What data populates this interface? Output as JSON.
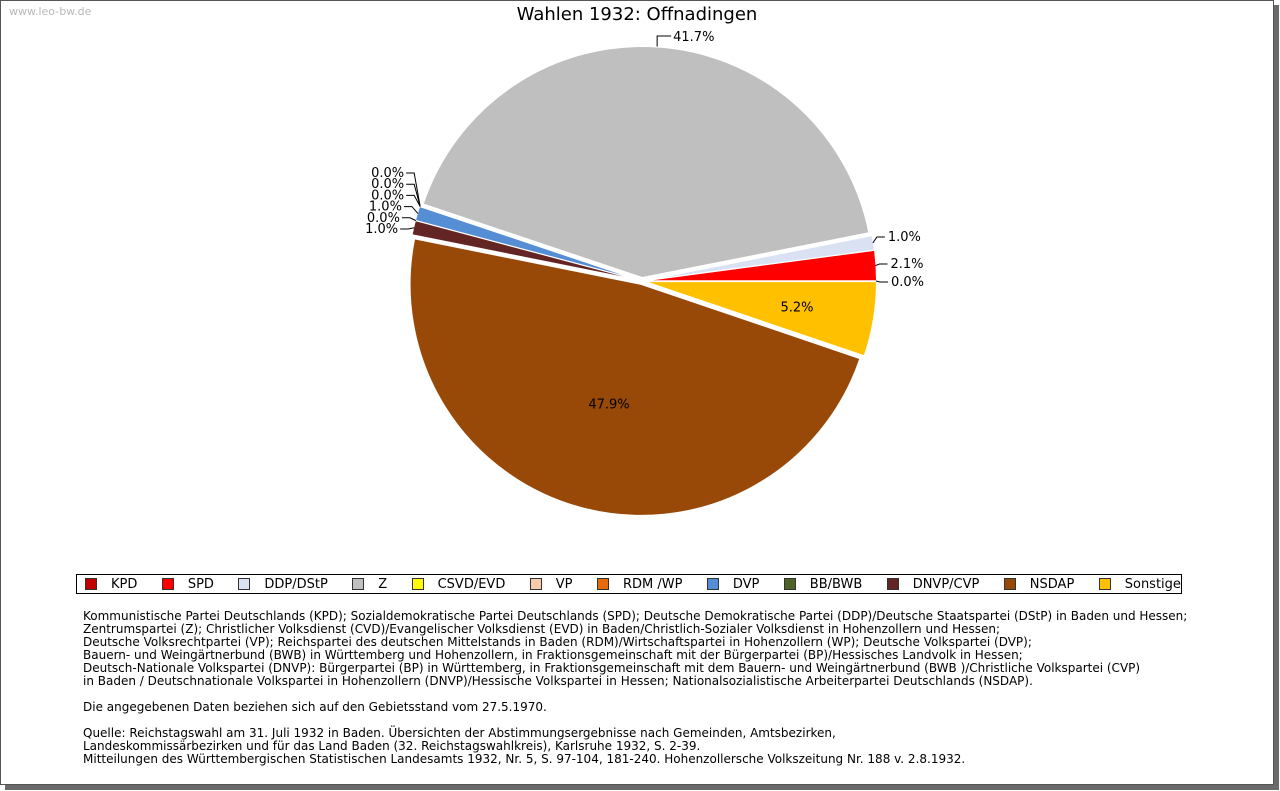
{
  "watermark": "www.leo-bw.de",
  "chart_data": {
    "type": "pie",
    "title": "Wahlen 1932: Offnadingen",
    "slices": [
      {
        "name": "KPD",
        "value": 0.0,
        "label": "0.0%",
        "color": "#c00000"
      },
      {
        "name": "SPD",
        "value": 2.1,
        "label": "2.1%",
        "color": "#ff0000"
      },
      {
        "name": "DDP/DStP",
        "value": 1.0,
        "label": "1.0%",
        "color": "#d9e1f2"
      },
      {
        "name": "Z",
        "value": 41.7,
        "label": "41.7%",
        "color": "#bfbfbf"
      },
      {
        "name": "CSVD/EVD",
        "value": 0.0,
        "label": "0.0%",
        "color": "#ffff00"
      },
      {
        "name": "VP",
        "value": 0.0,
        "label": "0.0%",
        "color": "#f8cbad"
      },
      {
        "name": "RDM /WP",
        "value": 0.0,
        "label": "0.0%",
        "color": "#e46c0a"
      },
      {
        "name": "DVP",
        "value": 1.0,
        "label": "1.0%",
        "color": "#558ed5"
      },
      {
        "name": "BB/BWB",
        "value": 0.0,
        "label": "0.0%",
        "color": "#4f6228"
      },
      {
        "name": "DNVP/CVP",
        "value": 1.0,
        "label": "1.0%",
        "color": "#632523"
      },
      {
        "name": "NSDAP",
        "value": 47.9,
        "label": "47.9%",
        "color": "#984807"
      },
      {
        "name": "Sonstige",
        "value": 5.2,
        "label": "5.2%",
        "color": "#ffc000"
      }
    ],
    "legend_position": "bottom"
  },
  "notes": {
    "parties": [
      "Kommunistische Partei Deutschlands (KPD); Sozialdemokratische Partei Deutschlands (SPD); Deutsche Demokratische Partei (DDP)/Deutsche Staatspartei (DStP) in Baden und Hessen;",
      "Zentrumspartei (Z); Christlicher Volksdienst (CVD)/Evangelischer Volksdienst (EVD) in Baden/Christlich-Sozialer Volksdienst in Hohenzollern und Hessen;",
      "Deutsche Volksrechtpartei (VP); Reichspartei des deutschen Mittelstands in Baden (RDM)/Wirtschaftspartei in Hohenzollern (WP); Deutsche Volkspartei (DVP);",
      "Bauern- und Weingärtnerbund (BWB) in Württemberg und Hohenzollern, in Fraktionsgemeinschaft mit der Bürgerpartei (BP)/Hessisches Landvolk in Hessen;",
      "Deutsch-Nationale Volkspartei (DNVP): Bürgerpartei (BP) in Württemberg, in Fraktionsgemeinschaft mit dem Bauern- und Weingärtnerbund (BWB )/Christliche Volkspartei (CVP)",
      "in Baden / Deutschnationale Volkspartei in Hohenzollern (DNVP)/Hessische Volkspartei in Hessen; Nationalsozialistische Arbeiterpartei Deutschlands (NSDAP)."
    ],
    "gebietsstand": "Die angegebenen Daten beziehen sich auf den Gebietsstand vom 27.5.1970.",
    "source": [
      "Quelle: Reichstagswahl am 31. Juli 1932 in Baden. Übersichten der Abstimmungsergebnisse nach Gemeinden, Amtsbezirken,",
      "Landeskommissärbezirken und für das Land Baden (32. Reichstagswahlkreis), Karlsruhe 1932, S. 2-39.",
      "Mitteilungen des Württembergischen Statistischen Landesamts 1932, Nr. 5, S. 97-104, 181-240. Hohenzollersche Volkszeitung Nr. 188 v. 2.8.1932."
    ]
  }
}
